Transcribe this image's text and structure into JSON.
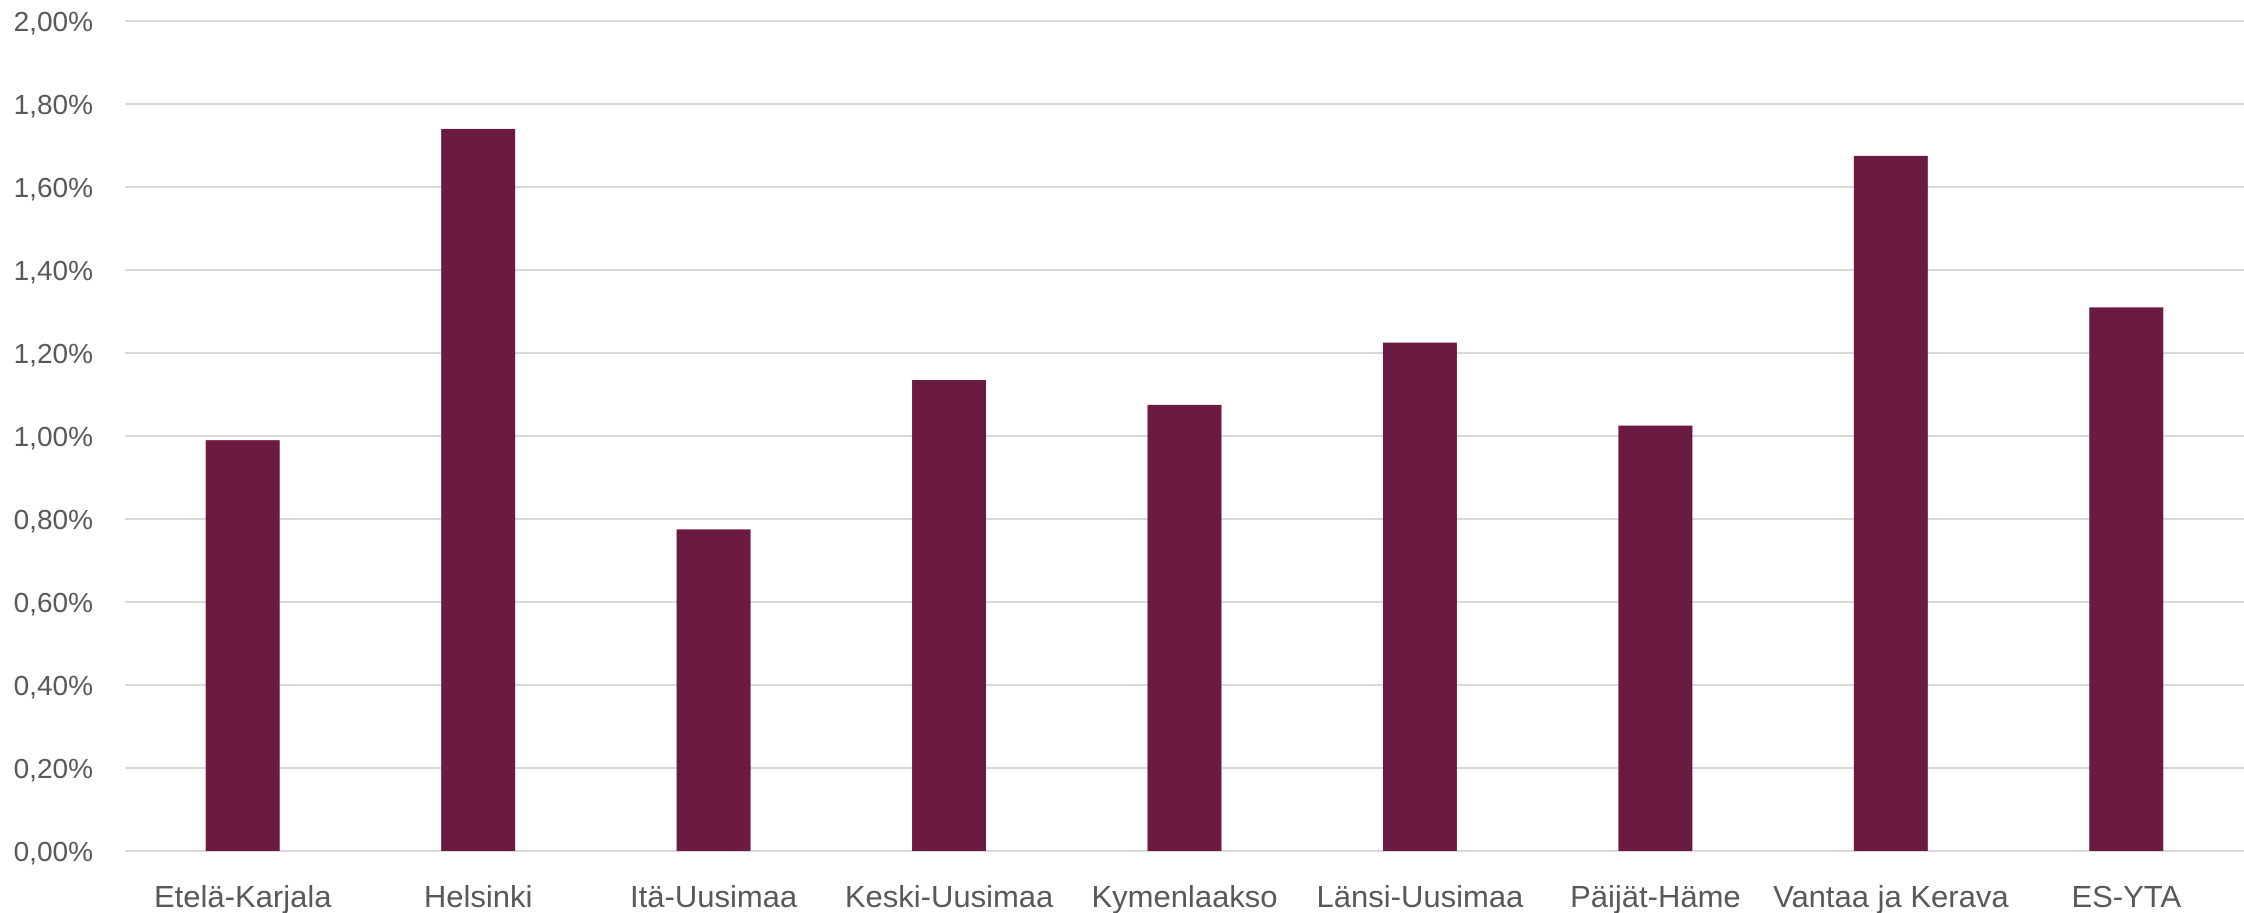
{
  "chart_data": {
    "type": "bar",
    "title": "",
    "xlabel": "",
    "ylabel": "",
    "ylim": [
      0,
      0.02
    ],
    "y_tick_values": [
      0,
      0.002,
      0.004,
      0.006,
      0.008,
      0.01,
      0.012,
      0.014,
      0.016,
      0.018,
      0.02
    ],
    "y_tick_labels": [
      "0,00%",
      "0,20%",
      "0,40%",
      "0,60%",
      "0,80%",
      "1,00%",
      "1,20%",
      "1,40%",
      "1,60%",
      "1,80%",
      "2,00%"
    ],
    "categories": [
      "Etelä-Karjala",
      "Helsinki",
      "Itä-Uusimaa",
      "Keski-Uusimaa",
      "Kymenlaakso",
      "Länsi-Uusimaa",
      "Päijät-Häme",
      "Vantaa ja Kerava",
      "ES-YTA"
    ],
    "values": [
      0.0099,
      0.0174,
      0.00775,
      0.01135,
      0.01075,
      0.01225,
      0.01025,
      0.01675,
      0.0131
    ],
    "bar_color": "#6b1a42",
    "grid": true,
    "legend": "none"
  }
}
